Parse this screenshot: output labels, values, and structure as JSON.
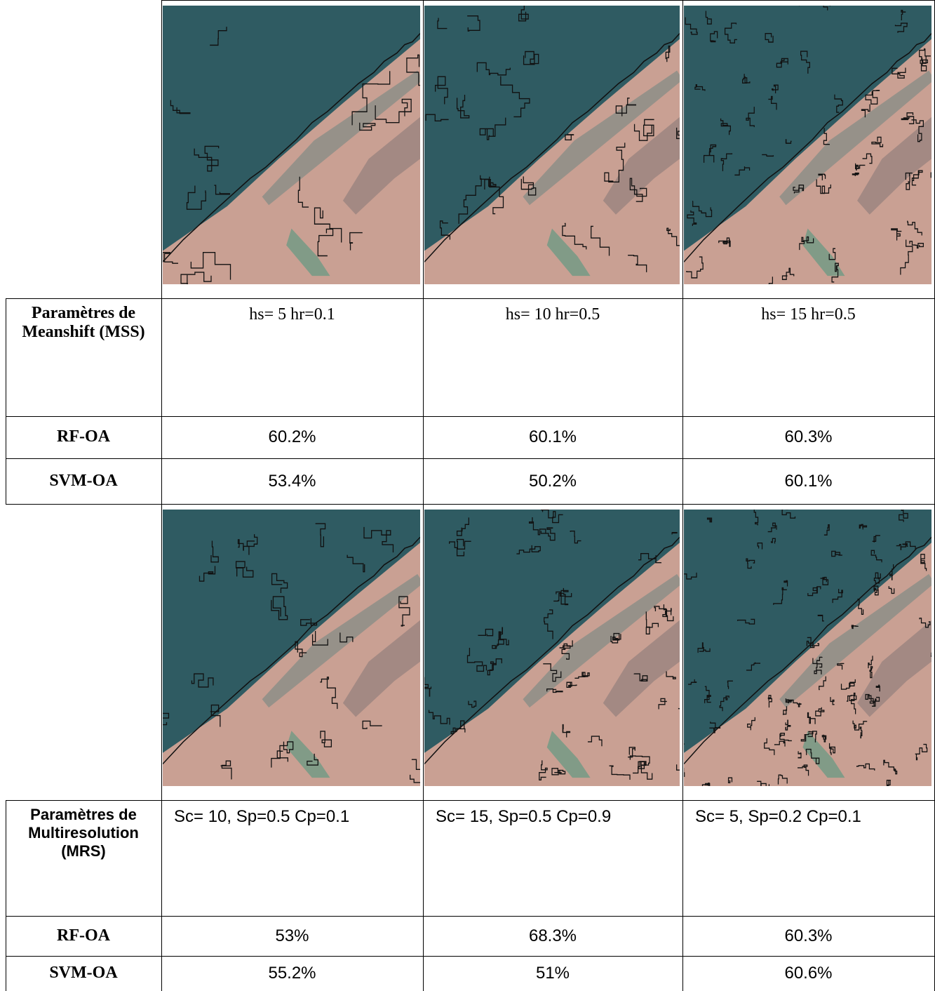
{
  "sections": [
    {
      "param_label": "Paramètres de Meanshift (MSS)",
      "params": [
        "hs= 5  hr=0.1",
        "hs= 10  hr=0.5",
        "hs= 15  hr=0.5"
      ],
      "rows": [
        {
          "label": "RF-OA",
          "values": [
            "60.2%",
            "60.1%",
            "60.3%"
          ]
        },
        {
          "label": "SVM-OA",
          "values": [
            "53.4%",
            "50.2%",
            "60.1%"
          ]
        }
      ]
    },
    {
      "param_label": "Paramètres de Multiresolution (MRS)",
      "params": [
        "Sc= 10, Sp=0.5 Cp=0.1",
        "Sc= 15, Sp=0.5 Cp=0.9",
        "Sc= 5, Sp=0.2 Cp=0.1"
      ],
      "rows": [
        {
          "label": "RF-OA",
          "values": [
            "53%",
            "68.3%",
            "60.3%"
          ]
        },
        {
          "label": "SVM-OA",
          "values": [
            "55.2%",
            "51%",
            "60.6%"
          ]
        }
      ]
    }
  ]
}
